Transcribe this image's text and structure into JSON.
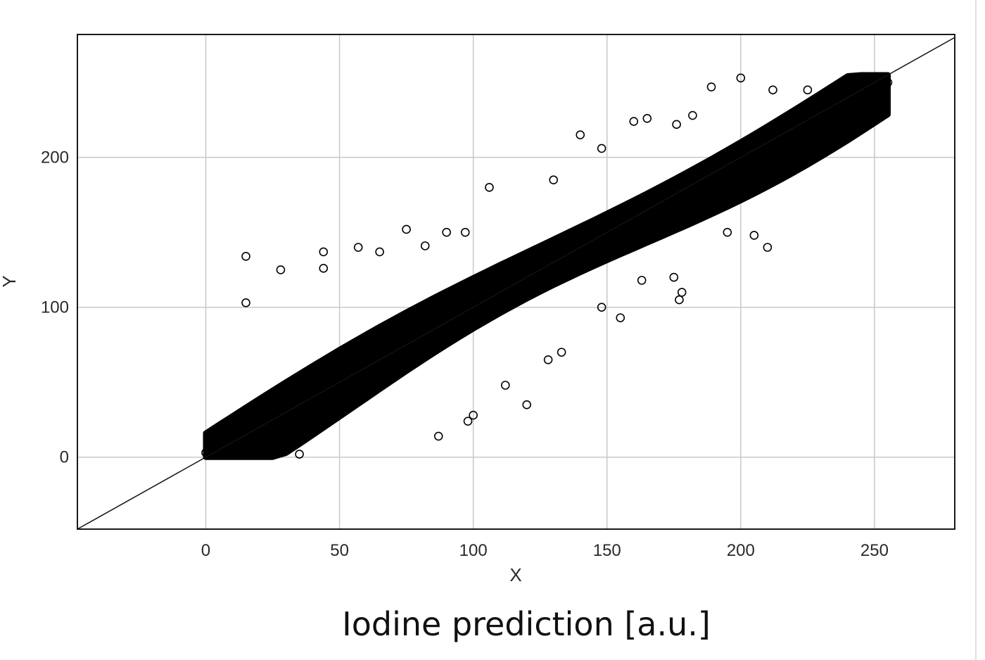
{
  "caption": "Iodine prediction [a.u.]",
  "chart_data": {
    "type": "scatter",
    "title": "",
    "xlabel": "X",
    "ylabel": "Y",
    "xlim": [
      -48,
      280
    ],
    "ylim": [
      -48,
      282
    ],
    "xticks": [
      0,
      50,
      100,
      150,
      200,
      250
    ],
    "yticks": [
      0,
      100,
      200
    ],
    "grid": true,
    "marker": "open-circle",
    "marker_color": "#000000",
    "reference_line": {
      "label": "y = x",
      "slope": 1,
      "intercept": 0
    },
    "series": [
      {
        "x": [
          0,
          5,
          10,
          15,
          20,
          25,
          30,
          35,
          40,
          45,
          50,
          55,
          60,
          65,
          70,
          75,
          80,
          85,
          90,
          95,
          100,
          105,
          110,
          115,
          120,
          125,
          130,
          135,
          140,
          145,
          150,
          155,
          160,
          165,
          170,
          175,
          180,
          185,
          190,
          195,
          200,
          205,
          210,
          215,
          220,
          225,
          230,
          235,
          240,
          245,
          250,
          255,
          15,
          15,
          28,
          44,
          44,
          57,
          65,
          75,
          82,
          90,
          97,
          106,
          130,
          140,
          148,
          160,
          165,
          176,
          182,
          189,
          200,
          206,
          212,
          225,
          87,
          98,
          100,
          112,
          120,
          128,
          133,
          148,
          155,
          163,
          175,
          177,
          178,
          195,
          205,
          210,
          35
        ],
        "y": [
          3,
          6,
          10,
          15,
          20,
          26,
          31,
          36,
          41,
          46,
          51,
          56,
          61,
          66,
          71,
          76,
          80,
          85,
          90,
          95,
          100,
          105,
          110,
          115,
          120,
          125,
          130,
          135,
          140,
          145,
          150,
          155,
          160,
          165,
          170,
          175,
          180,
          185,
          190,
          195,
          200,
          205,
          210,
          215,
          220,
          225,
          230,
          235,
          240,
          245,
          248,
          250,
          134,
          103,
          125,
          137,
          126,
          140,
          137,
          152,
          141,
          150,
          150,
          180,
          185,
          215,
          206,
          224,
          226,
          222,
          228,
          247,
          253,
          209,
          245,
          245,
          14,
          24,
          28,
          48,
          35,
          65,
          70,
          100,
          93,
          118,
          120,
          105,
          110,
          150,
          148,
          140,
          2
        ]
      }
    ]
  }
}
